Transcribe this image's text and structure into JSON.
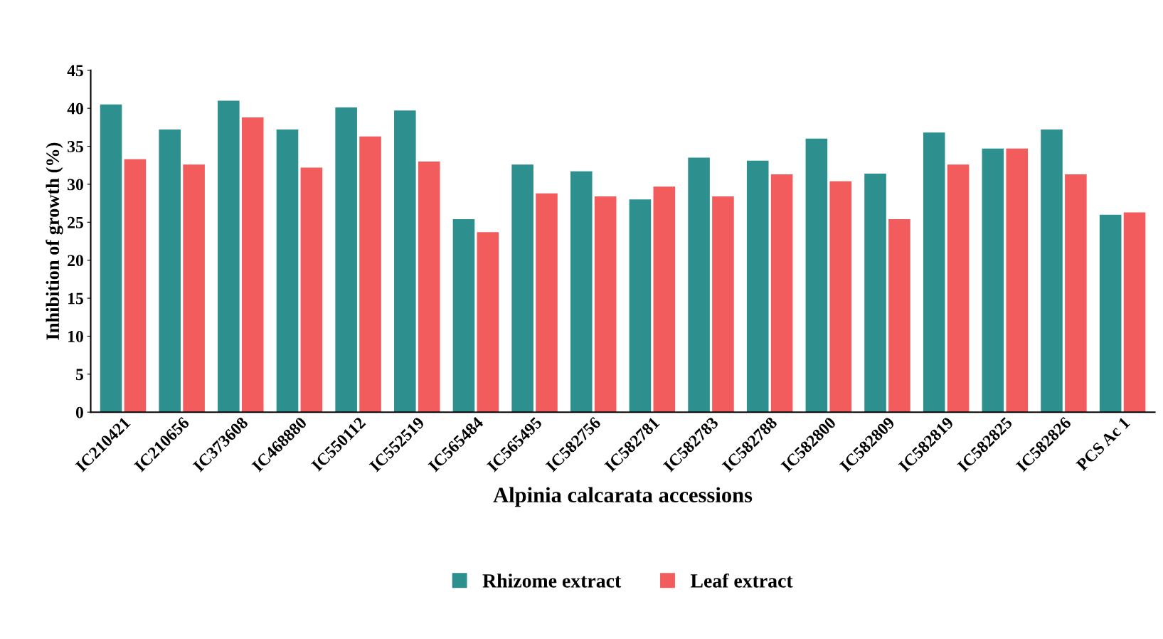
{
  "chart_data": {
    "type": "bar",
    "xlabel": "Alpinia calcarata accessions",
    "ylabel": "Inhibition of growth (%)",
    "categories": [
      "IC210421",
      "IC210656",
      "IC373608",
      "IC468880",
      "IC550112",
      "IC552519",
      "IC565484",
      "IC565495",
      "IC582756",
      "IC582781",
      "IC582783",
      "IC582788",
      "IC582800",
      "IC582809",
      "IC582819",
      "IC582825",
      "IC582826",
      "PCS Ac 1"
    ],
    "series": [
      {
        "name": "Rhizome extract",
        "color": "#2e8f8f",
        "values": [
          40.5,
          37.2,
          41.0,
          37.2,
          40.1,
          39.7,
          25.4,
          32.6,
          31.7,
          28.0,
          33.5,
          33.1,
          36.0,
          31.4,
          36.8,
          34.7,
          37.2,
          26.0
        ]
      },
      {
        "name": "Leaf extract",
        "color": "#f25c5c",
        "values": [
          33.3,
          32.6,
          38.8,
          32.2,
          36.3,
          33.0,
          23.7,
          28.8,
          28.4,
          29.7,
          28.4,
          31.3,
          30.4,
          25.4,
          32.6,
          34.7,
          31.3,
          26.3
        ]
      }
    ],
    "ylim": [
      0,
      45
    ],
    "yticks": [
      0,
      5,
      10,
      15,
      20,
      25,
      30,
      35,
      40,
      45
    ],
    "grid": false,
    "legend": "bottom"
  }
}
